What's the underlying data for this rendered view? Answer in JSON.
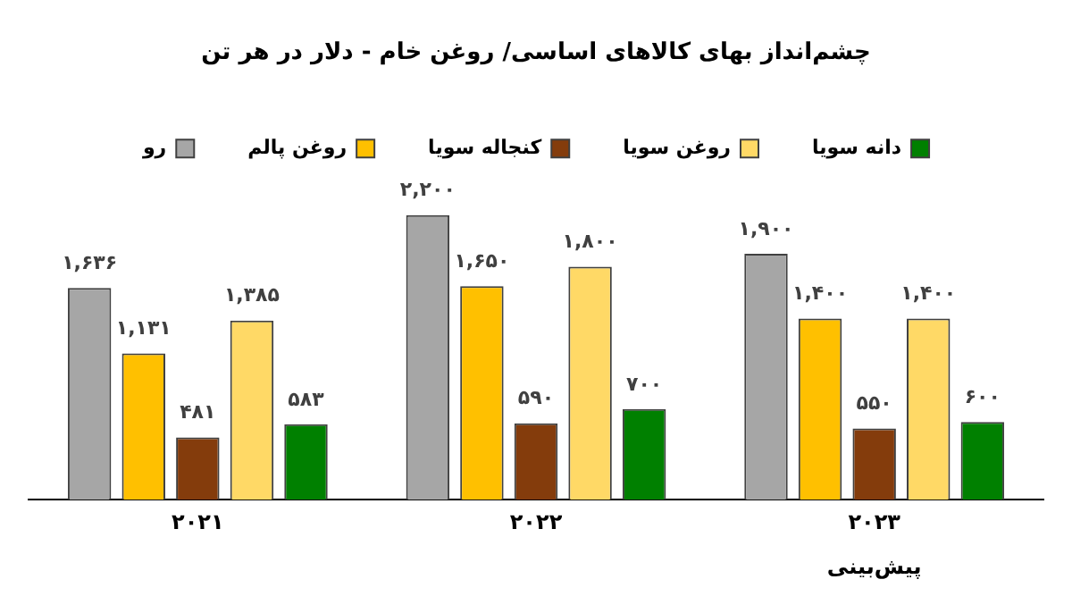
{
  "chart_data": {
    "type": "bar",
    "title": "چشم‌انداز بهای کالاهای اساسی/ روغن خام - دلار در هر تن",
    "categories": [
      "۲۰۲۱",
      "۲۰۲۲",
      "۲۰۲۳"
    ],
    "series": [
      {
        "name": "رو",
        "color": "#a6a6a6",
        "values": [
          1636,
          2200,
          1900
        ],
        "value_labels": [
          "۱,۶۳۶",
          "۲,۲۰۰",
          "۱,۹۰۰"
        ]
      },
      {
        "name": "روغن پالم",
        "color": "#ffc000",
        "values": [
          1131,
          1650,
          1400
        ],
        "value_labels": [
          "۱,۱۳۱",
          "۱,۶۵۰",
          "۱,۴۰۰"
        ]
      },
      {
        "name": "کنجاله سویا",
        "color": "#843c0c",
        "values": [
          481,
          590,
          550
        ],
        "value_labels": [
          "۴۸۱",
          "۵۹۰",
          "۵۵۰"
        ]
      },
      {
        "name": "روغن سویا",
        "color": "#ffd966",
        "values": [
          1385,
          1800,
          1400
        ],
        "value_labels": [
          "۱,۳۸۵",
          "۱,۸۰۰",
          "۱,۴۰۰"
        ]
      },
      {
        "name": "دانه سویا",
        "color": "#008000",
        "values": [
          583,
          700,
          600
        ],
        "value_labels": [
          "۵۸۳",
          "۷۰۰",
          "۶۰۰"
        ]
      }
    ],
    "annotations": [
      "پیش‌بینی"
    ],
    "legend": "top",
    "grid": false
  }
}
